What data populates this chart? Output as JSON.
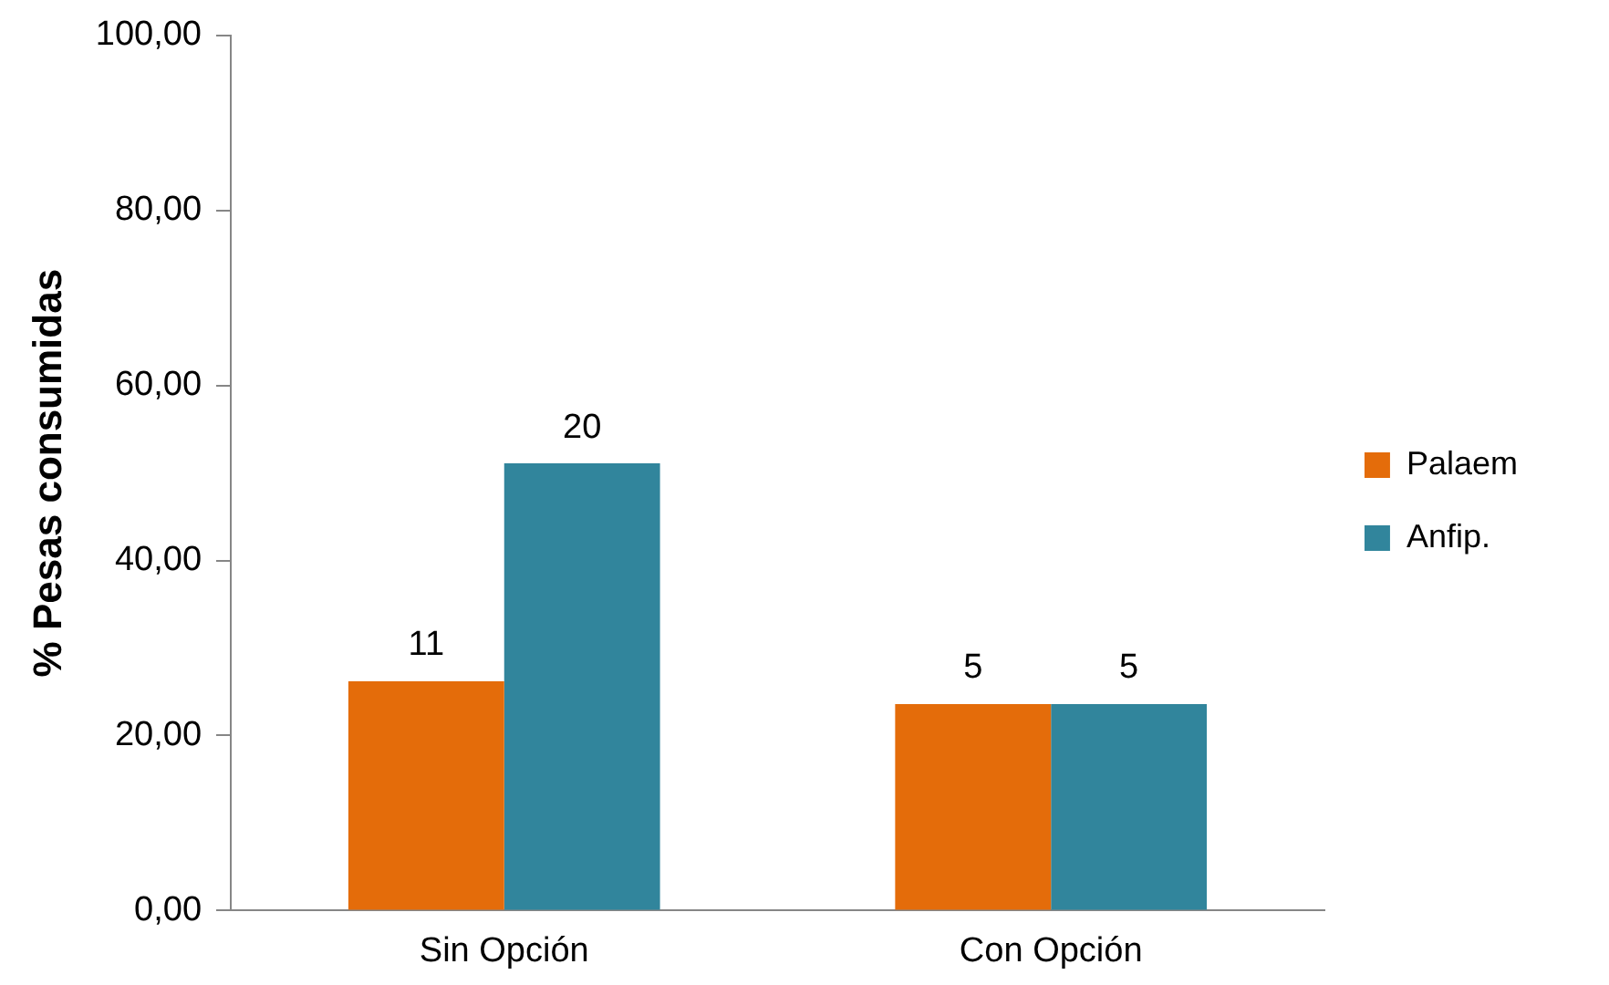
{
  "chart_data": {
    "type": "bar",
    "ylabel": "% Pesas consumidas",
    "categories": [
      "Sin Opción",
      "Con Opción"
    ],
    "series": [
      {
        "name": "Palaem",
        "color": "#e46c0a",
        "values": [
          26.2,
          23.6
        ]
      },
      {
        "name": "Anfip.",
        "color": "#31859c",
        "values": [
          51.1,
          23.6
        ]
      }
    ],
    "ylim": [
      0,
      100
    ],
    "yticks": [
      {
        "value": 0,
        "label": "0,00"
      },
      {
        "value": 20,
        "label": "20,00"
      },
      {
        "value": 40,
        "label": "40,00"
      },
      {
        "value": 60,
        "label": "60,00"
      },
      {
        "value": 80,
        "label": "80,00"
      },
      {
        "value": 100,
        "label": "100,00"
      }
    ],
    "annotations": [
      {
        "text": "11",
        "x": "Sin Opción",
        "y": 26.2
      },
      {
        "text": "20",
        "x": "Sin Opción",
        "y": 51.1
      },
      {
        "text": "5",
        "x": "Con Opción",
        "y": 23.6
      },
      {
        "text": "5",
        "x": "Con Opción",
        "y": 23.6
      }
    ],
    "grid": false,
    "legend": "right"
  }
}
